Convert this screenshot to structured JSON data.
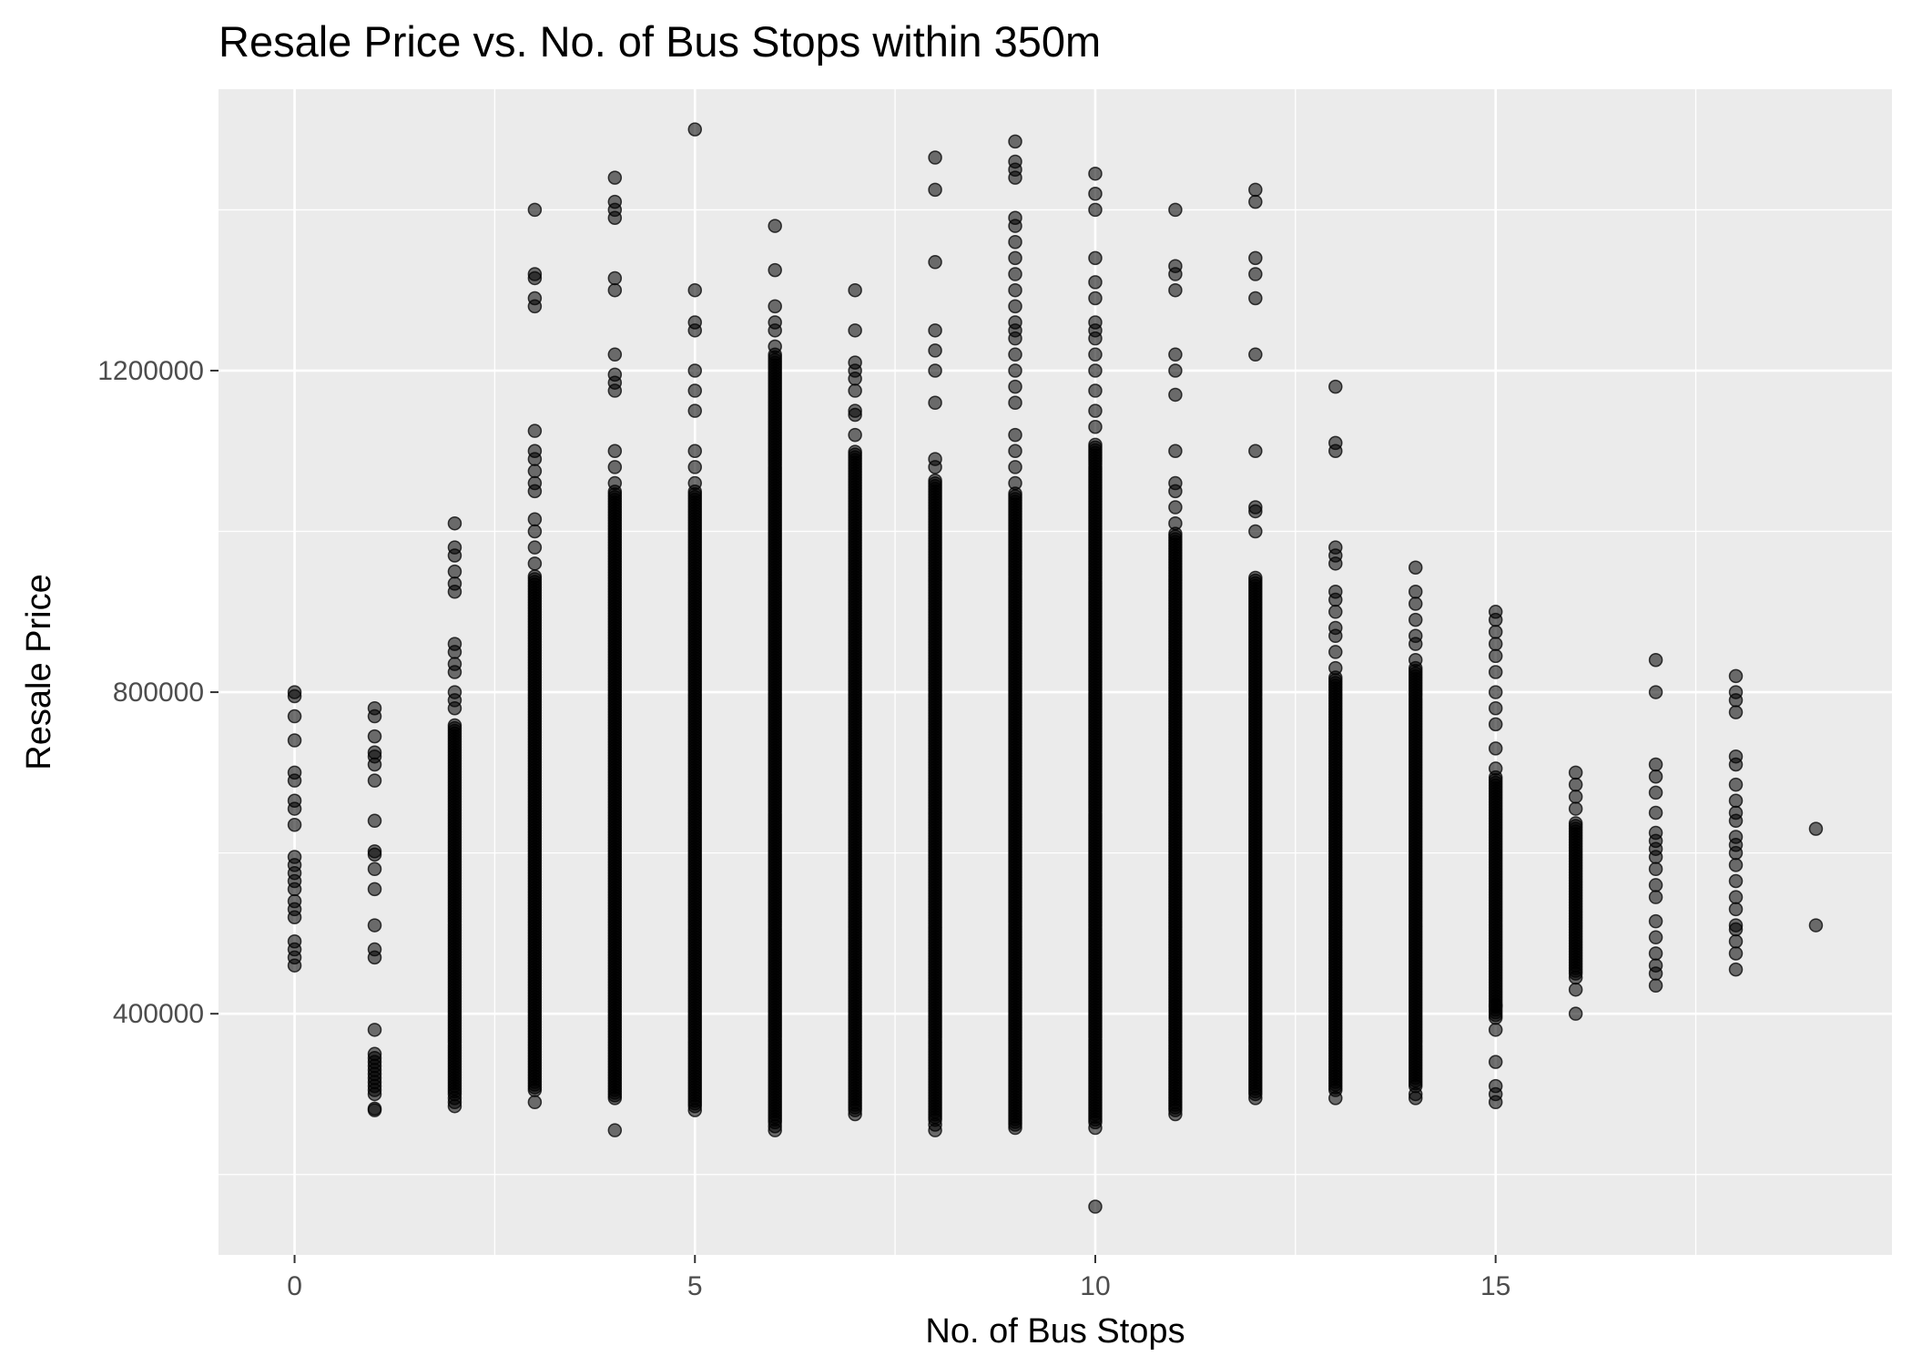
{
  "chart_data": {
    "type": "scatter",
    "title": "Resale Price vs. No. of Bus Stops within 350m",
    "xlabel": "No. of Bus Stops",
    "ylabel": "Resale Price",
    "xlim": [
      -0.95,
      19.95
    ],
    "ylim": [
      100000,
      1550000
    ],
    "x_ticks": [
      0,
      5,
      10,
      15
    ],
    "x_tick_labels": [
      "0",
      "5",
      "10",
      "15"
    ],
    "x_minor_ticks": [
      2.5,
      7.5,
      12.5,
      17.5
    ],
    "y_ticks": [
      400000,
      800000,
      1200000
    ],
    "y_tick_labels": [
      "400000",
      "800000",
      "1200000"
    ],
    "y_minor_ticks": [
      200000,
      600000,
      1000000,
      1400000
    ],
    "grid": true,
    "background": "#ebebeb",
    "point_color": "#000000",
    "point_alpha": 0.55,
    "series": [
      {
        "columns": [
          {
            "x": 0,
            "dense": [],
            "points": [
              460000,
              470000,
              480000,
              490000,
              520000,
              530000,
              540000,
              555000,
              565000,
              575000,
              585000,
              595000,
              635000,
              655000,
              665000,
              690000,
              700000,
              740000,
              770000,
              795000,
              800000
            ]
          },
          {
            "x": 1,
            "dense": [],
            "points": [
              280000,
              282000,
              300000,
              305000,
              310000,
              315000,
              320000,
              325000,
              330000,
              335000,
              340000,
              345000,
              350000,
              380000,
              470000,
              480000,
              510000,
              555000,
              580000,
              598000,
              602000,
              640000,
              690000,
              710000,
              720000,
              725000,
              745000,
              770000,
              780000
            ]
          },
          {
            "x": 2,
            "dense": [
              [
                300000,
                760000
              ]
            ],
            "points": [
              285000,
              290000,
              295000,
              780000,
              790000,
              800000,
              825000,
              835000,
              850000,
              860000,
              925000,
              935000,
              950000,
              970000,
              980000,
              1010000
            ]
          },
          {
            "x": 3,
            "dense": [
              [
                305000,
                945000
              ]
            ],
            "points": [
              290000,
              960000,
              980000,
              1000000,
              1015000,
              1050000,
              1060000,
              1075000,
              1090000,
              1100000,
              1125000,
              1280000,
              1290000,
              1315000,
              1320000,
              1400000
            ]
          },
          {
            "x": 4,
            "dense": [
              [
                295000,
                1050000
              ]
            ],
            "points": [
              255000,
              1060000,
              1080000,
              1100000,
              1175000,
              1185000,
              1195000,
              1220000,
              1300000,
              1315000,
              1390000,
              1400000,
              1410000,
              1440000
            ]
          },
          {
            "x": 5,
            "dense": [
              [
                285000,
                1050000
              ]
            ],
            "points": [
              280000,
              1060000,
              1080000,
              1100000,
              1150000,
              1175000,
              1200000,
              1250000,
              1260000,
              1300000,
              1500000
            ]
          },
          {
            "x": 6,
            "dense": [
              [
                265000,
                1220000
              ]
            ],
            "points": [
              255000,
              260000,
              1230000,
              1250000,
              1260000,
              1280000,
              1325000,
              1380000
            ]
          },
          {
            "x": 7,
            "dense": [
              [
                280000,
                1100000
              ]
            ],
            "points": [
              275000,
              1120000,
              1145000,
              1150000,
              1175000,
              1190000,
              1200000,
              1210000,
              1250000,
              1300000
            ]
          },
          {
            "x": 8,
            "dense": [
              [
                268000,
                1065000
              ]
            ],
            "points": [
              255000,
              262000,
              1080000,
              1090000,
              1160000,
              1200000,
              1225000,
              1250000,
              1335000,
              1425000,
              1465000
            ]
          },
          {
            "x": 9,
            "dense": [
              [
                262000,
                1050000
              ]
            ],
            "points": [
              258000,
              1060000,
              1080000,
              1100000,
              1120000,
              1160000,
              1180000,
              1200000,
              1220000,
              1240000,
              1250000,
              1260000,
              1280000,
              1300000,
              1320000,
              1340000,
              1360000,
              1380000,
              1390000,
              1440000,
              1450000,
              1460000,
              1485000
            ]
          },
          {
            "x": 10,
            "dense": [
              [
                265000,
                1110000
              ]
            ],
            "points": [
              160000,
              258000,
              1130000,
              1150000,
              1175000,
              1200000,
              1220000,
              1240000,
              1250000,
              1260000,
              1290000,
              1310000,
              1340000,
              1400000,
              1420000,
              1445000
            ]
          },
          {
            "x": 11,
            "dense": [
              [
                280000,
                1000000
              ]
            ],
            "points": [
              275000,
              1010000,
              1030000,
              1050000,
              1060000,
              1100000,
              1170000,
              1200000,
              1220000,
              1300000,
              1320000,
              1330000,
              1400000
            ]
          },
          {
            "x": 12,
            "dense": [
              [
                300000,
                945000
              ]
            ],
            "points": [
              295000,
              1000000,
              1025000,
              1030000,
              1100000,
              1220000,
              1290000,
              1320000,
              1340000,
              1410000,
              1425000
            ]
          },
          {
            "x": 13,
            "dense": [
              [
                305000,
                820000
              ]
            ],
            "points": [
              295000,
              830000,
              850000,
              870000,
              880000,
              900000,
              915000,
              925000,
              960000,
              970000,
              980000,
              1100000,
              1110000,
              1180000
            ]
          },
          {
            "x": 14,
            "dense": [
              [
                310000,
                830000
              ]
            ],
            "points": [
              295000,
              300000,
              840000,
              860000,
              870000,
              890000,
              910000,
              925000,
              955000
            ]
          },
          {
            "x": 15,
            "dense": [
              [
                395000,
                695000
              ]
            ],
            "points": [
              290000,
              300000,
              310000,
              340000,
              380000,
              410000,
              705000,
              730000,
              760000,
              780000,
              800000,
              825000,
              845000,
              860000,
              875000,
              890000,
              900000
            ]
          },
          {
            "x": 16,
            "dense": [
              [
                450000,
                640000
              ]
            ],
            "points": [
              400000,
              430000,
              445000,
              655000,
              670000,
              685000,
              700000
            ]
          },
          {
            "x": 17,
            "dense": [],
            "points": [
              435000,
              450000,
              460000,
              475000,
              495000,
              515000,
              545000,
              560000,
              580000,
              595000,
              605000,
              615000,
              625000,
              650000,
              675000,
              695000,
              710000,
              800000,
              840000
            ]
          },
          {
            "x": 18,
            "dense": [],
            "points": [
              455000,
              475000,
              490000,
              505000,
              510000,
              530000,
              545000,
              565000,
              585000,
              600000,
              610000,
              620000,
              640000,
              650000,
              665000,
              685000,
              710000,
              720000,
              775000,
              790000,
              800000,
              820000
            ]
          },
          {
            "x": 19,
            "dense": [],
            "points": [
              510000,
              630000
            ]
          }
        ]
      }
    ]
  }
}
